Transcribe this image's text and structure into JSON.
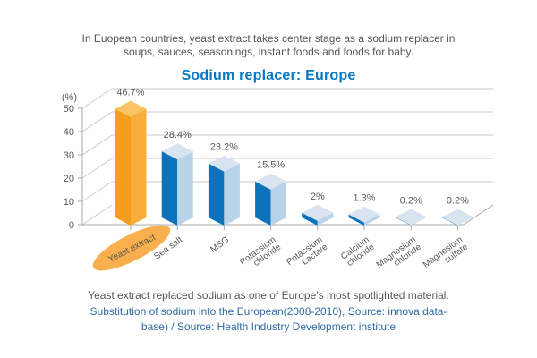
{
  "header": {
    "intro_lines": [
      "In Euopean countries, yeast extract takes center stage as a sodium replacer in",
      "soups, sauces, seasonings, instant foods and foods for baby."
    ],
    "title": "Sodium replacer: Europe"
  },
  "chart_data": {
    "type": "bar",
    "style": "3d-perspective",
    "title": "Sodium replacer: Europe",
    "ylabel": "(%)",
    "ylim": [
      0,
      50
    ],
    "yticks": [
      0,
      10,
      20,
      30,
      40,
      50
    ],
    "grid": true,
    "categories": [
      "Yeast extract",
      "Sea salt",
      "MSG",
      "Potassium chloride",
      "Potassium Lactate",
      "Calcium chloride",
      "Magnesium chloride",
      "Magnesium sulfate"
    ],
    "category_lines": [
      [
        "Yeast extract"
      ],
      [
        "Sea salt"
      ],
      [
        "MSG"
      ],
      [
        "Potassium",
        "chloride"
      ],
      [
        "Potassium",
        "Lactate"
      ],
      [
        "Calcium",
        "chloride"
      ],
      [
        "Magnesium",
        "chloride"
      ],
      [
        "Magnesium",
        "sulfate"
      ]
    ],
    "values": [
      46.7,
      28.4,
      23.2,
      15.5,
      2,
      1.3,
      0.2,
      0.2
    ],
    "value_labels": [
      "46.7%",
      "28.4%",
      "23.2%",
      "15.5%",
      "2%",
      "1.3%",
      "0.2%",
      "0.2%"
    ],
    "highlight_index": 0,
    "colors": {
      "bar_blue": {
        "left": "#0C72BC",
        "right": "#B8D2E8",
        "top": "#D8E5F0"
      },
      "bar_orange": {
        "left": "#F59D1E",
        "right": "#F9AD3A",
        "top": "#FAC464"
      },
      "highlight_ellipse": "#F9AF4D",
      "highlight_text": "#55564E",
      "axis": "#A7A9AC",
      "grid": "#C8CACC",
      "label_text": "#58595B"
    }
  },
  "footer": {
    "caption": "Yeast extract replaced sodium as one of Europe’s most spotlighted material.",
    "source_lines": [
      "Substitution of sodium into the European(2008-2010), Source: innova data-",
      "base) / Source: Health Industry Development institute"
    ]
  }
}
